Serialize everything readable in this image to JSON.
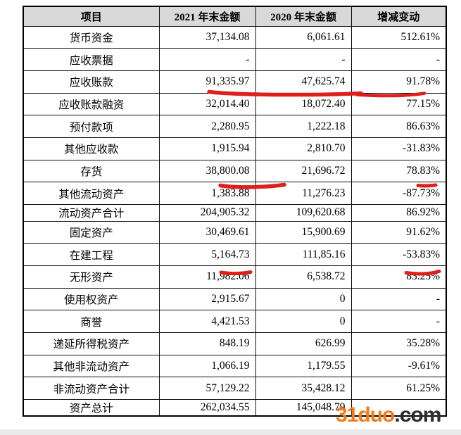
{
  "table": {
    "headers": [
      "项目",
      "2021 年末金额",
      "2020 年末金额",
      "增减变动"
    ],
    "rows": [
      {
        "item": "货币资金",
        "y2021": "37,134.08",
        "y2020": "6,061.61",
        "change": "512.61%"
      },
      {
        "item": "应收票据",
        "y2021": "-",
        "y2020": "-",
        "change": "-"
      },
      {
        "item": "应收账款",
        "y2021": "91,335.97",
        "y2020": "47,625.74",
        "change": "91.78%"
      },
      {
        "item": "应收账款融资",
        "y2021": "32,014.40",
        "y2020": "18,072.40",
        "change": "77.15%"
      },
      {
        "item": "预付款项",
        "y2021": "2,280.95",
        "y2020": "1,222.18",
        "change": "86.63%"
      },
      {
        "item": "其他应收款",
        "y2021": "1,915.94",
        "y2020": "2,810.70",
        "change": "-31.83%"
      },
      {
        "item": "存货",
        "y2021": "38,800.08",
        "y2020": "21,696.72",
        "change": "78.83%"
      },
      {
        "item": "其他流动资产",
        "y2021": "1,383.88",
        "y2020": "11,276.23",
        "change": "-87.73%"
      },
      {
        "item": "流动资产合计",
        "y2021": "204,905.32",
        "y2020": "109,620.68",
        "change": "86.92%"
      },
      {
        "item": "固定资产",
        "y2021": "30,469.61",
        "y2020": "15,900.69",
        "change": "91.62%"
      },
      {
        "item": "在建工程",
        "y2021": "5,164.73",
        "y2020": "111,85.16",
        "change": "-53.83%"
      },
      {
        "item": "无形资产",
        "y2021": "11,982.06",
        "y2020": "6,538.72",
        "change": "83.25%"
      },
      {
        "item": "使用权资产",
        "y2021": "2,915.67",
        "y2020": "0",
        "change": "-"
      },
      {
        "item": "商誉",
        "y2021": "4,421.53",
        "y2020": "0",
        "change": "-"
      },
      {
        "item": "递延所得税资产",
        "y2021": "848.19",
        "y2020": "626.99",
        "change": "35.28%"
      },
      {
        "item": "其他非流动资产",
        "y2021": "1,066.19",
        "y2020": "1,179.55",
        "change": "-9.61%"
      },
      {
        "item": "非流动资产合计",
        "y2021": "57,129.22",
        "y2020": "35,428.12",
        "change": "61.25%"
      },
      {
        "item": "资产总计",
        "y2021": "262,034.55",
        "y2020": "145,048.79",
        "change": ""
      }
    ]
  },
  "annotations": {
    "color": "#de1f1c",
    "marks": [
      {
        "row": "应收账款",
        "cells": [
          "2021年末金额",
          "2020年末金额",
          "增减变动"
        ],
        "type": "red-underline"
      },
      {
        "row": "存货",
        "cells": [
          "2021年末金额"
        ],
        "type": "red-underline"
      },
      {
        "row": "存货",
        "cells": [
          "增减变动"
        ],
        "type": "red-underline"
      },
      {
        "row": "在建工程",
        "cells": [
          "2021年末金额"
        ],
        "type": "red-underline"
      },
      {
        "row": "在建工程",
        "cells": [
          "增减变动"
        ],
        "type": "red-underline"
      }
    ]
  },
  "watermark": {
    "brand": "31duo",
    "suffix": ".com",
    "brand_color": "#f47a1a",
    "suffix_color": "#2d2d2d"
  }
}
